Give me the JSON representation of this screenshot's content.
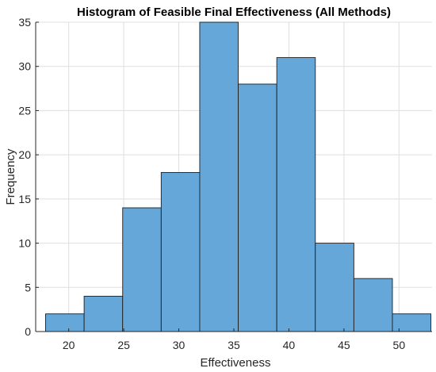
{
  "chart_data": {
    "type": "bar",
    "title": "Histogram of Feasible Final Effectiveness (All Methods)",
    "xlabel": "Effectiveness",
    "ylabel": "Frequency",
    "bin_edges": [
      17.9,
      21.4,
      24.9,
      28.4,
      31.9,
      35.4,
      38.9,
      42.4,
      45.9,
      49.4,
      52.9
    ],
    "values": [
      2,
      4,
      14,
      18,
      35,
      28,
      31,
      10,
      6,
      2
    ],
    "xlim": [
      17,
      53
    ],
    "ylim": [
      0,
      35
    ],
    "x_ticks": [
      "20",
      "25",
      "30",
      "35",
      "40",
      "45",
      "50"
    ],
    "y_ticks": [
      "0",
      "5",
      "10",
      "15",
      "20",
      "25",
      "30",
      "35"
    ],
    "grid": true,
    "bar_color": "#64a7d8",
    "edge_color": "#1f1f1f"
  }
}
